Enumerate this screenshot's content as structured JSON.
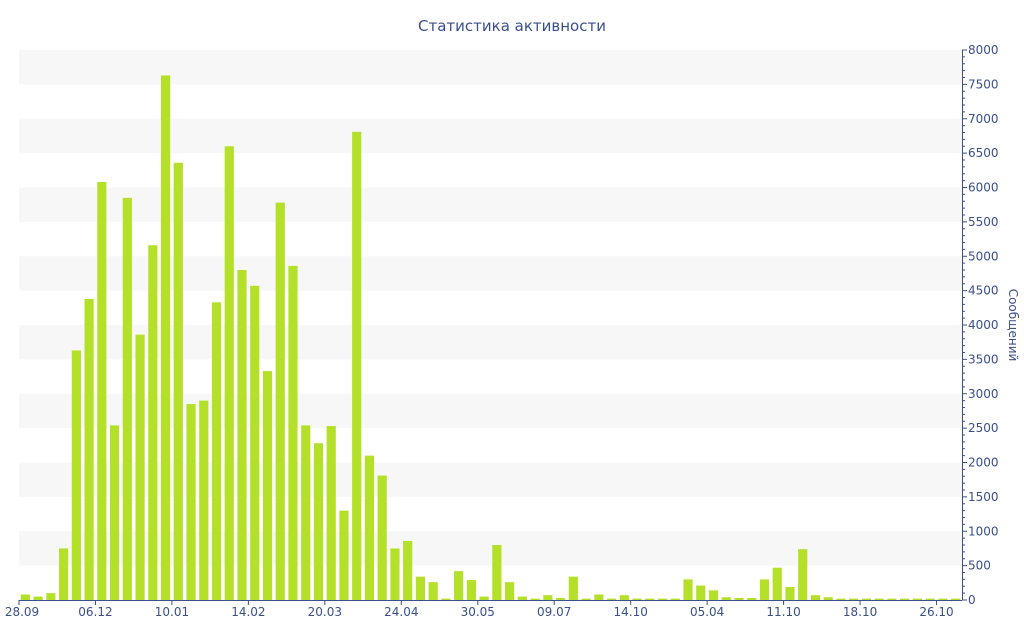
{
  "chart_data": {
    "type": "bar",
    "title": "Статистика активности",
    "xlabel": "",
    "ylabel": "Сообщений",
    "ylim": [
      0,
      8000
    ],
    "y_ticks": [
      0,
      500,
      1000,
      1500,
      2000,
      2500,
      3000,
      3500,
      4000,
      4500,
      5000,
      5500,
      6000,
      6500,
      7000,
      7500,
      8000
    ],
    "x_tick_labels": [
      {
        "index": 0,
        "label": "28.09"
      },
      {
        "index": 6,
        "label": "06.12"
      },
      {
        "index": 12,
        "label": "10.01"
      },
      {
        "index": 18,
        "label": "14.02"
      },
      {
        "index": 24,
        "label": "20.03"
      },
      {
        "index": 30,
        "label": "24.04"
      },
      {
        "index": 36,
        "label": "30.05"
      },
      {
        "index": 42,
        "label": "09.07"
      },
      {
        "index": 48,
        "label": "14.10"
      },
      {
        "index": 54,
        "label": "05.04"
      },
      {
        "index": 60,
        "label": "11.10"
      },
      {
        "index": 66,
        "label": "18.10"
      },
      {
        "index": 72,
        "label": "26.10"
      }
    ],
    "values": [
      80,
      50,
      100,
      750,
      3630,
      4380,
      6080,
      2540,
      5850,
      3860,
      5160,
      7630,
      6360,
      2850,
      2900,
      4330,
      6600,
      4800,
      4570,
      3330,
      5780,
      4860,
      2540,
      2280,
      2530,
      1300,
      6810,
      2100,
      1810,
      750,
      860,
      340,
      260,
      20,
      420,
      290,
      50,
      800,
      260,
      50,
      20,
      70,
      30,
      340,
      20,
      80,
      20,
      70,
      20,
      20,
      20,
      20,
      300,
      210,
      140,
      40,
      30,
      30,
      300,
      470,
      190,
      740,
      70,
      40,
      20,
      20,
      20,
      20,
      20,
      20,
      20,
      20,
      20,
      20
    ],
    "grid": "horizontal alternating bands",
    "y_axis_position": "right",
    "colors": {
      "bar": "#b5e02a",
      "band": "#f7f7f7",
      "axis": "#3b4f8a"
    }
  }
}
